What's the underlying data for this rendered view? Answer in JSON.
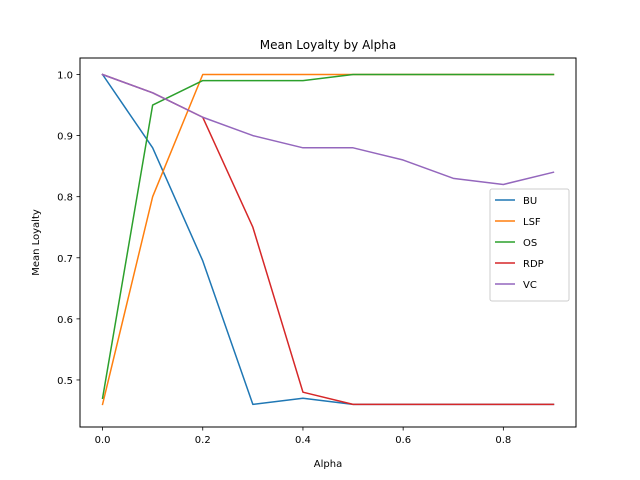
{
  "chart_data": {
    "type": "line",
    "title": "Mean Loyalty by Alpha",
    "xlabel": "Alpha",
    "ylabel": "Mean Loyalty",
    "xlim": [
      -0.045,
      0.945
    ],
    "ylim": [
      0.423,
      1.027
    ],
    "xticks": [
      0.0,
      0.2,
      0.4,
      0.6,
      0.8
    ],
    "xtick_labels": [
      "0.0",
      "0.2",
      "0.4",
      "0.6",
      "0.8"
    ],
    "yticks": [
      0.5,
      0.6,
      0.7,
      0.8,
      0.9,
      1.0
    ],
    "ytick_labels": [
      "0.5",
      "0.6",
      "0.7",
      "0.8",
      "0.9",
      "1.0"
    ],
    "grid": false,
    "legend_position": "center-right",
    "x": [
      0.0,
      0.1,
      0.2,
      0.3,
      0.4,
      0.5,
      0.6,
      0.7,
      0.8,
      0.9
    ],
    "series": [
      {
        "name": "BU",
        "color": "#1f77b4",
        "values": [
          1.0,
          0.88,
          0.695,
          0.46,
          0.47,
          0.46,
          0.46,
          0.46,
          0.46,
          0.46
        ]
      },
      {
        "name": "LSF",
        "color": "#ff7f0e",
        "values": [
          0.46,
          0.8,
          1.0,
          1.0,
          1.0,
          1.0,
          1.0,
          1.0,
          1.0,
          1.0
        ]
      },
      {
        "name": "OS",
        "color": "#2ca02c",
        "values": [
          0.47,
          0.95,
          0.99,
          0.99,
          0.99,
          1.0,
          1.0,
          1.0,
          1.0,
          1.0
        ]
      },
      {
        "name": "RDP",
        "color": "#d62728",
        "values": [
          1.0,
          0.97,
          0.93,
          0.75,
          0.48,
          0.46,
          0.46,
          0.46,
          0.46,
          0.46
        ]
      },
      {
        "name": "VC",
        "color": "#9467bd",
        "values": [
          1.0,
          0.97,
          0.93,
          0.9,
          0.88,
          0.88,
          0.86,
          0.83,
          0.82,
          0.84
        ]
      }
    ]
  }
}
